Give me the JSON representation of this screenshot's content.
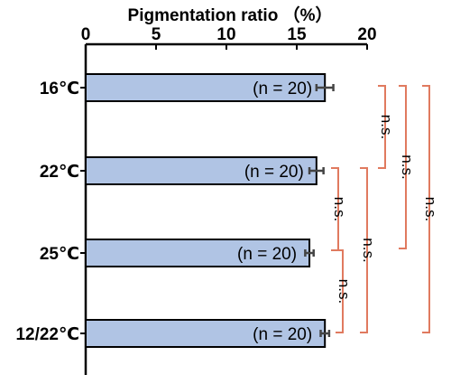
{
  "chart_data": {
    "type": "bar",
    "orientation": "horizontal",
    "title": "Pigmentation ratio （%）",
    "xlim": [
      0,
      20
    ],
    "x_ticks": [
      "0",
      "5",
      "10",
      "15",
      "20"
    ],
    "categories": [
      "16℃",
      "22℃",
      "25℃",
      "12/22℃"
    ],
    "values": [
      17.0,
      16.4,
      15.9,
      17.0
    ],
    "errors": [
      0.6,
      0.5,
      0.3,
      0.3
    ],
    "bar_labels": [
      "(n = 20)",
      "(n = 20)",
      "(n = 20)",
      "(n = 20)"
    ],
    "bar_color": "#b0c4e4",
    "comparisons": [
      {
        "from": "22℃",
        "to": "25℃",
        "label": "n.s."
      },
      {
        "from": "25℃",
        "to": "12/22℃",
        "label": "n.s."
      },
      {
        "from": "16℃",
        "to": "22℃",
        "label": "n.s."
      },
      {
        "from": "22℃",
        "to": "12/22℃",
        "label": "n.s."
      },
      {
        "from": "16℃",
        "to": "25℃",
        "label": "n.s."
      },
      {
        "from": "16℃",
        "to": "12/22℃",
        "label": "n.s."
      }
    ],
    "comparison_color": "#e07a5f",
    "grid": false,
    "legend": "none"
  }
}
